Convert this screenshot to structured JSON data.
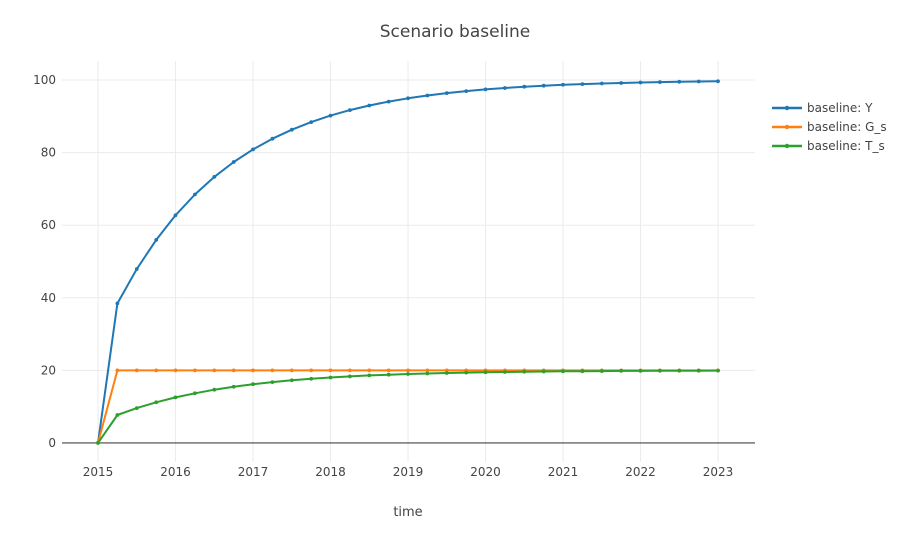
{
  "chart_data": {
    "type": "line",
    "mode": "lines+markers",
    "title": "Scenario baseline",
    "xlabel": "time",
    "ylabel": "",
    "grid": true,
    "legend_position": "right",
    "background": "#ffffff",
    "grid_color": "#ebebeb",
    "zeroline_color": "#444444",
    "text_color": "#444444",
    "xlim": [
      2014.535,
      2023.477
    ],
    "ylim": [
      -5.25,
      105.25
    ],
    "xticks": [
      2015,
      2016,
      2017,
      2018,
      2019,
      2020,
      2021,
      2022,
      2023
    ],
    "yticks": [
      0,
      20,
      40,
      60,
      80,
      100
    ],
    "x": [
      2015,
      2015.25,
      2015.5,
      2015.75,
      2016,
      2016.25,
      2016.5,
      2016.75,
      2017,
      2017.25,
      2017.5,
      2017.75,
      2018,
      2018.25,
      2018.5,
      2018.75,
      2019,
      2019.25,
      2019.5,
      2019.75,
      2020,
      2020.25,
      2020.5,
      2020.75,
      2021,
      2021.25,
      2021.5,
      2021.75,
      2022,
      2022.25,
      2022.5,
      2022.75,
      2023
    ],
    "series": [
      {
        "name": "baseline: Y",
        "color": "#1f77b4",
        "values": [
          0,
          38.46,
          47.93,
          55.94,
          62.72,
          68.45,
          73.31,
          77.41,
          80.89,
          83.83,
          86.32,
          88.42,
          90.2,
          91.71,
          92.99,
          94.06,
          94.98,
          95.75,
          96.4,
          96.96,
          97.43,
          97.82,
          98.16,
          98.44,
          98.68,
          98.88,
          99.06,
          99.2,
          99.32,
          99.43,
          99.52,
          99.59,
          99.65
        ]
      },
      {
        "name": "baseline: G_s",
        "color": "#ff7f0e",
        "values": [
          0,
          20,
          20,
          20,
          20,
          20,
          20,
          20,
          20,
          20,
          20,
          20,
          20,
          20,
          20,
          20,
          20,
          20,
          20,
          20,
          20,
          20,
          20,
          20,
          20,
          20,
          20,
          20,
          20,
          20,
          20,
          20,
          20
        ]
      },
      {
        "name": "baseline: T_s",
        "color": "#2ca02c",
        "values": [
          0,
          7.69,
          9.59,
          11.19,
          12.54,
          13.69,
          14.66,
          15.48,
          16.18,
          16.77,
          17.26,
          17.68,
          18.04,
          18.34,
          18.6,
          18.81,
          19,
          19.15,
          19.28,
          19.39,
          19.49,
          19.56,
          19.63,
          19.69,
          19.74,
          19.78,
          19.81,
          19.84,
          19.86,
          19.89,
          19.9,
          19.92,
          19.93
        ]
      }
    ]
  }
}
